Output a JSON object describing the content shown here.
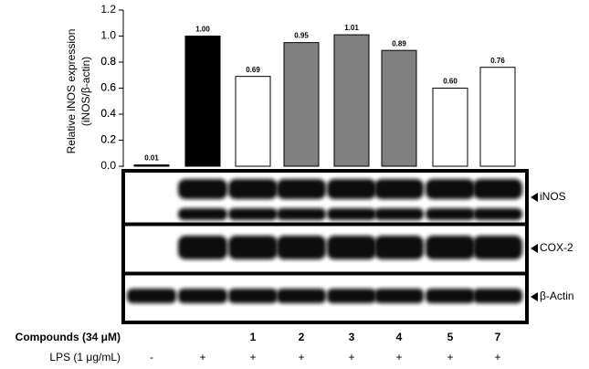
{
  "chart_data": {
    "type": "bar",
    "y_label": [
      "Relative iNOS expression",
      "(iNOS/β-actin)"
    ],
    "categories": [
      null,
      null,
      "1",
      "2",
      "3",
      "4",
      "5",
      "7"
    ],
    "category_label": "Compounds (34 μM)",
    "lps": {
      "label": "LPS (1 μg/mL)",
      "values": [
        "-",
        "+",
        "+",
        "+",
        "+",
        "+",
        "+",
        "+"
      ]
    },
    "values": [
      0.01,
      1.0,
      0.69,
      0.95,
      1.01,
      0.89,
      0.6,
      0.76
    ],
    "value_labels": [
      "0.01",
      "1.00",
      "0.69",
      "0.95",
      "1.01",
      "0.89",
      "0.60",
      "0.76"
    ],
    "colors": [
      "#000000",
      "#000000",
      "#ffffff",
      "#808080",
      "#808080",
      "#808080",
      "#ffffff",
      "#ffffff"
    ],
    "ylim": [
      0,
      1.2
    ],
    "yticks": [
      {
        "value": 0,
        "label": "0.0"
      },
      0.2,
      0.4,
      0.6,
      0.8,
      {
        "value": 1,
        "label": "1.0"
      },
      0.2,
      0.4,
      0.6,
      0.8,
      {
        "value": 1.2,
        "label": "1.2"
      }
    ],
    "blot_labels": [
      "iNOS",
      "COX-2",
      "β-Actin"
    ]
  }
}
